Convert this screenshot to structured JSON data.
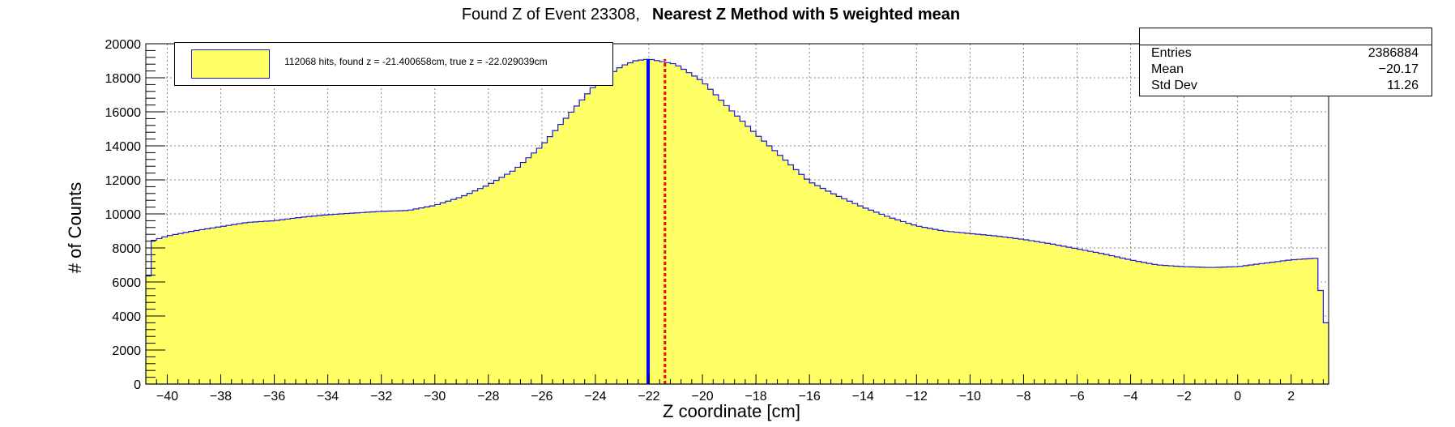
{
  "title": {
    "part1": "Found Z of Event 23308,",
    "part2": "Nearest Z Method with 5 weighted mean"
  },
  "stats": {
    "rows": [
      {
        "label": "Entries",
        "value": "2386884"
      },
      {
        "label": "Mean",
        "value": "−20.17"
      },
      {
        "label": "Std Dev",
        "value": "11.26"
      }
    ]
  },
  "legend": {
    "entry": "112068 hits, found z = -21.400658cm, true z = -22.029039cm"
  },
  "colors": {
    "fill": "#ffff66",
    "outline": "#1a1adb",
    "true_line": "#0000ff",
    "found_line": "#ff0000",
    "grid": "#888888"
  },
  "chart_data": {
    "type": "histogram",
    "xlabel": "Z coordinate [cm]",
    "ylabel": "# of Counts",
    "xlim": [
      -40.8,
      3.4
    ],
    "ylim": [
      0,
      20000
    ],
    "x_ticks": [
      -40,
      -38,
      -36,
      -34,
      -32,
      -30,
      -28,
      -26,
      -24,
      -22,
      -20,
      -18,
      -16,
      -14,
      -12,
      -10,
      -8,
      -6,
      -4,
      -2,
      0,
      2
    ],
    "y_ticks": [
      0,
      2000,
      4000,
      6000,
      8000,
      10000,
      12000,
      14000,
      16000,
      18000,
      20000
    ],
    "grid": true,
    "bin_width": 0.2,
    "curve_points": [
      [
        -40.8,
        4300
      ],
      [
        -40.6,
        8400
      ],
      [
        -40.0,
        8700
      ],
      [
        -39.0,
        9000
      ],
      [
        -38.0,
        9250
      ],
      [
        -37.0,
        9500
      ],
      [
        -36.0,
        9600
      ],
      [
        -35.0,
        9800
      ],
      [
        -34.0,
        9950
      ],
      [
        -33.0,
        10050
      ],
      [
        -32.0,
        10150
      ],
      [
        -31.0,
        10200
      ],
      [
        -30.0,
        10500
      ],
      [
        -29.0,
        11000
      ],
      [
        -28.0,
        11700
      ],
      [
        -27.0,
        12600
      ],
      [
        -26.0,
        14000
      ],
      [
        -25.0,
        15800
      ],
      [
        -24.0,
        17600
      ],
      [
        -23.0,
        18700
      ],
      [
        -22.5,
        19000
      ],
      [
        -22.0,
        19100
      ],
      [
        -21.0,
        18800
      ],
      [
        -20.0,
        17800
      ],
      [
        -19.0,
        16200
      ],
      [
        -18.0,
        14700
      ],
      [
        -17.0,
        13300
      ],
      [
        -16.0,
        11900
      ],
      [
        -15.0,
        11100
      ],
      [
        -14.0,
        10400
      ],
      [
        -13.0,
        9800
      ],
      [
        -12.0,
        9300
      ],
      [
        -11.0,
        9000
      ],
      [
        -10.0,
        8850
      ],
      [
        -9.0,
        8700
      ],
      [
        -8.0,
        8500
      ],
      [
        -7.0,
        8250
      ],
      [
        -6.0,
        7950
      ],
      [
        -5.0,
        7650
      ],
      [
        -4.0,
        7300
      ],
      [
        -3.0,
        7000
      ],
      [
        -2.0,
        6900
      ],
      [
        -1.0,
        6850
      ],
      [
        0.0,
        6900
      ],
      [
        1.0,
        7100
      ],
      [
        2.0,
        7300
      ],
      [
        3.0,
        7400
      ],
      [
        3.2,
        3600
      ],
      [
        3.4,
        3600
      ]
    ],
    "true_z": -22.029039,
    "found_z": -21.400658
  }
}
